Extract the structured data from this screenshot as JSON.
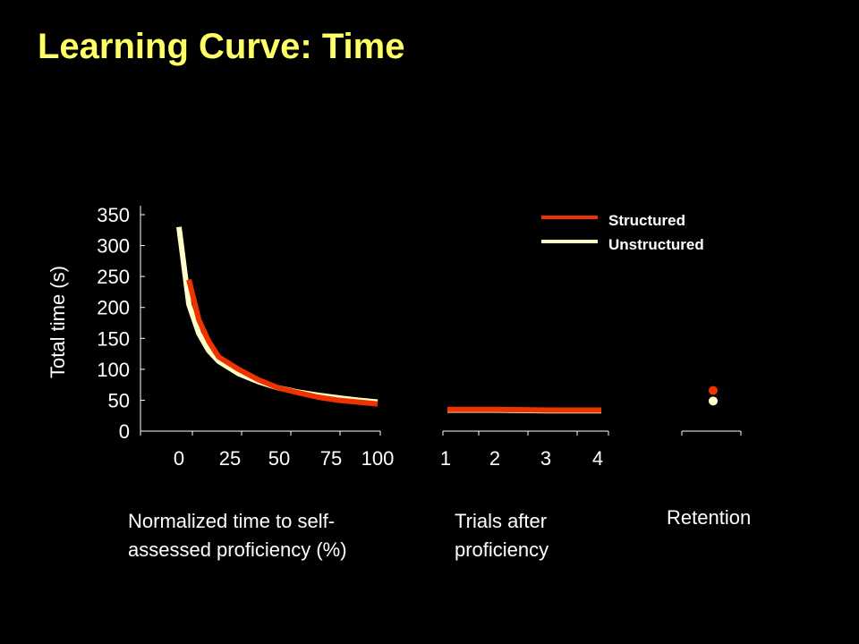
{
  "title": "Learning Curve:  Time",
  "chart_data": {
    "type": "line",
    "ylabel": "Total time (s)",
    "yticks": [
      "350",
      "300",
      "250",
      "200",
      "150",
      "100",
      "50",
      "0"
    ],
    "ylim": [
      0,
      350
    ],
    "colors": {
      "Structured": "#ee3300",
      "Unstructured": "#ffffcc"
    },
    "legend": {
      "position": "top-right",
      "entries": [
        "Structured",
        "Unstructured"
      ]
    },
    "panels": [
      {
        "xlabel_lines": [
          "Normalized time to self-",
          "assessed  proficiency (%)"
        ],
        "xticks": [
          "0",
          "25",
          "50",
          "75",
          "100"
        ],
        "series": [
          {
            "name": "Unstructured",
            "x": [
              0,
              5,
              10,
              15,
              20,
              30,
              40,
              50,
              60,
              70,
              80,
              90,
              100
            ],
            "y": [
              330,
              205,
              158,
              130,
              113,
              93,
              80,
              70,
              63,
              58,
              54,
              50,
              47
            ]
          },
          {
            "name": "Structured",
            "x": [
              5,
              10,
              15,
              20,
              30,
              40,
              50,
              60,
              70,
              80,
              90,
              100
            ],
            "y": [
              245,
              180,
              145,
              120,
              100,
              83,
              70,
              62,
              55,
              50,
              47,
              44
            ]
          }
        ]
      },
      {
        "xlabel_lines": [
          "Trials after",
          "proficiency"
        ],
        "xticks": [
          "1",
          "2",
          "3",
          "4"
        ],
        "series": [
          {
            "name": "Unstructured",
            "x": [
              1,
              2,
              3,
              4
            ],
            "y": [
              34,
              34,
              33,
              33
            ]
          },
          {
            "name": "Structured",
            "x": [
              1,
              2,
              3,
              4
            ],
            "y": [
              35,
              35,
              34,
              34
            ]
          }
        ]
      },
      {
        "xlabel_lines": [
          "Retention"
        ],
        "xticks": [],
        "series": [
          {
            "name": "Structured",
            "y": [
              57
            ]
          },
          {
            "name": "Unstructured",
            "y": [
              40
            ]
          }
        ]
      }
    ]
  }
}
